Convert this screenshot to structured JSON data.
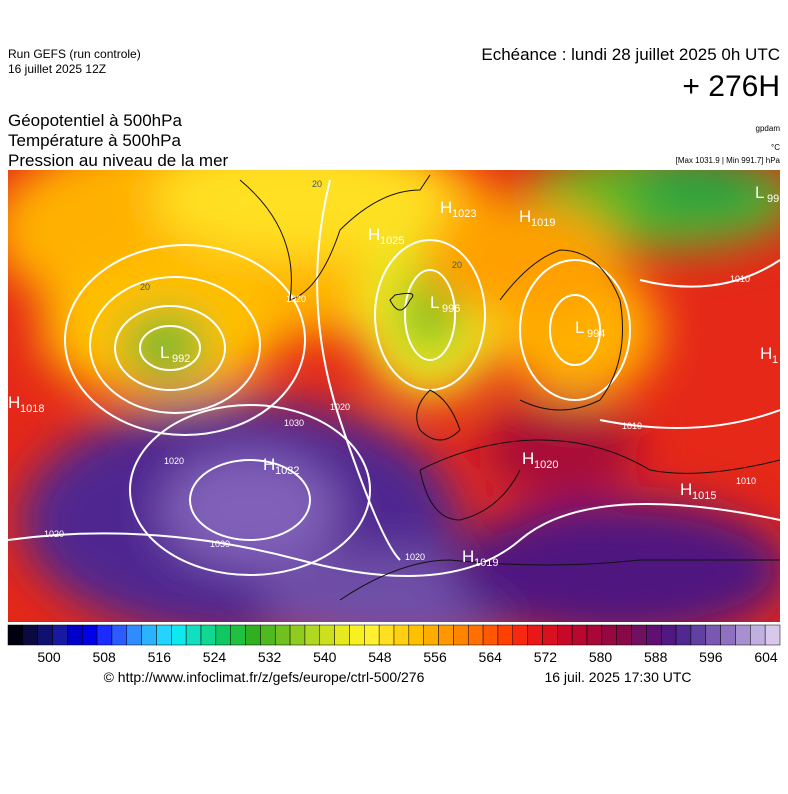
{
  "header": {
    "run": "Run GEFS (run controle)",
    "run_date": "16 juillet 2025 12Z",
    "echeance": "Echéance : lundi 28 juillet 2025 0h UTC",
    "lead": "+ 276H"
  },
  "titles": [
    "Géopotentiel à 500hPa",
    "Température à 500hPa",
    "Pression au niveau de la mer"
  ],
  "units": [
    "gpdam",
    "°C",
    "[Max 1031.9 | Min 991.7] hPa"
  ],
  "map": {
    "centers": [
      {
        "kind": "H",
        "value": "1018"
      },
      {
        "kind": "L",
        "value": "992"
      },
      {
        "kind": "H",
        "value": "1025"
      },
      {
        "kind": "H",
        "value": "1023"
      },
      {
        "kind": "H",
        "value": "1019"
      },
      {
        "kind": "L",
        "value": "996"
      },
      {
        "kind": "L",
        "value": "994"
      },
      {
        "kind": "L",
        "value": "99"
      },
      {
        "kind": "H",
        "value": "1"
      },
      {
        "kind": "H",
        "value": "1032"
      },
      {
        "kind": "H",
        "value": "1020"
      },
      {
        "kind": "H",
        "value": "1015"
      },
      {
        "kind": "H",
        "value": "1019"
      }
    ],
    "isoline_labels": [
      "1020",
      "1030",
      "1020",
      "1020",
      "1030",
      "1020",
      "1010",
      "1010",
      "1010",
      "1020",
      "20",
      "20",
      "20"
    ]
  },
  "colorbar": {
    "labels": [
      "500",
      "508",
      "516",
      "524",
      "532",
      "540",
      "548",
      "556",
      "564",
      "572",
      "580",
      "588",
      "596",
      "604"
    ],
    "colors": [
      "#000010",
      "#0a0a40",
      "#101070",
      "#1818a0",
      "#0000c8",
      "#0000e6",
      "#1a2cff",
      "#2a5cff",
      "#2f8cff",
      "#2ab4ff",
      "#22d4ff",
      "#10e8f0",
      "#10e0c0",
      "#10d890",
      "#10c860",
      "#20c040",
      "#30b020",
      "#50b820",
      "#70c020",
      "#90cc20",
      "#b0d820",
      "#cce020",
      "#e6e820",
      "#f8f020",
      "#fff030",
      "#ffe020",
      "#ffd010",
      "#ffc000",
      "#ffac00",
      "#ff9800",
      "#ff8400",
      "#ff7000",
      "#ff5800",
      "#ff4000",
      "#f82810",
      "#e81818",
      "#d81020",
      "#c80828",
      "#b80830",
      "#a80838",
      "#980840",
      "#880848",
      "#701060",
      "#601070",
      "#501880",
      "#502890",
      "#6040a0",
      "#7858b0",
      "#9070c0",
      "#a890d0",
      "#c0b0e0",
      "#d8c8ec"
    ]
  },
  "footer": {
    "source": "© http://www.infoclimat.fr/z/gefs/europe/ctrl-500/276",
    "generated": "16 juil. 2025 17:30 UTC"
  }
}
